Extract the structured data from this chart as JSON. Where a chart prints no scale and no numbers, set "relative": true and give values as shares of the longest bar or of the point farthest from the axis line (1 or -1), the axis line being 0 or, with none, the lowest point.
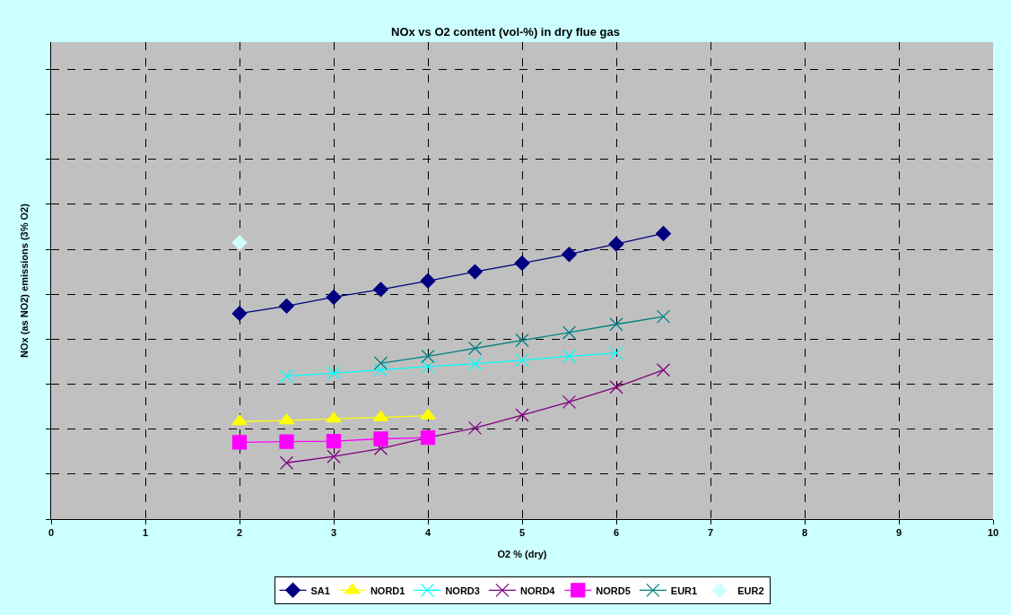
{
  "chart_data": {
    "type": "line",
    "title": "NOx vs O2 content (vol-%) in dry flue gas",
    "xlabel": "O2 % (dry)",
    "ylabel": "NOx (as NO2) emissions (3% O2)",
    "relative": true,
    "xlim": [
      0,
      10
    ],
    "xticks": [
      0,
      1,
      2,
      3,
      4,
      5,
      6,
      7,
      8,
      9,
      10
    ],
    "grid": true,
    "legend": "bottom",
    "line_style": "solid",
    "series": [
      {
        "name": "SA1",
        "color": "#000080",
        "marker": "diamond",
        "x": [
          2,
          2.5,
          3,
          3.5,
          4,
          4.5,
          5,
          5.5,
          6,
          6.5
        ],
        "values": [
          0.72,
          0.746,
          0.777,
          0.804,
          0.834,
          0.866,
          0.896,
          0.927,
          0.963,
          1
        ]
      },
      {
        "name": "NORD1",
        "color": "#ffff00",
        "marker": "triangle",
        "x": [
          2,
          2.5,
          3,
          3.5,
          4
        ],
        "values": [
          0.342,
          0.345,
          0.351,
          0.356,
          0.362
        ]
      },
      {
        "name": "NORD3",
        "color": "#00ffff",
        "marker": "cross",
        "x": [
          2.5,
          3,
          3.5,
          4,
          4.5,
          5,
          5.5,
          6
        ],
        "values": [
          0.5,
          0.511,
          0.522,
          0.534,
          0.544,
          0.556,
          0.57,
          0.581
        ]
      },
      {
        "name": "NORD4",
        "color": "#800080",
        "marker": "cross",
        "x": [
          2.5,
          3,
          3.5,
          4,
          4.5,
          5,
          5.5,
          6,
          6.5
        ],
        "values": [
          0.197,
          0.219,
          0.247,
          0.285,
          0.319,
          0.364,
          0.41,
          0.462,
          0.522
        ]
      },
      {
        "name": "NORD5",
        "color": "#ff00ff",
        "marker": "square",
        "x": [
          2,
          2.5,
          3,
          3.5,
          4
        ],
        "values": [
          0.269,
          0.271,
          0.273,
          0.281,
          0.285
        ]
      },
      {
        "name": "EUR1",
        "color": "#008080",
        "marker": "cross",
        "x": [
          3.5,
          4,
          4.5,
          5,
          5.5,
          6,
          6.5
        ],
        "values": [
          0.546,
          0.57,
          0.598,
          0.626,
          0.653,
          0.682,
          0.709
        ]
      },
      {
        "name": "EUR2",
        "type": "scatter",
        "color": "#ccffff",
        "marker": "diamond",
        "x": [
          2
        ],
        "values": [
          0.968
        ]
      }
    ]
  }
}
